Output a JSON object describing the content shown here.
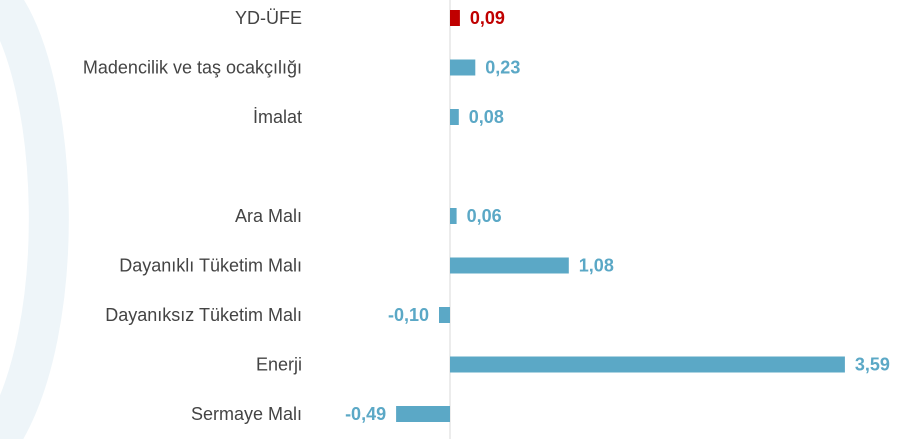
{
  "chart_data": {
    "type": "bar",
    "orientation": "horizontal",
    "categories": [
      "YD-ÜFE",
      "Madencilik ve taş ocakçılığı",
      "İmalat",
      null,
      "Ara Malı",
      "Dayanıklı Tüketim Malı",
      "Dayanıksız Tüketim Malı",
      "Enerji",
      "Sermaye Malı"
    ],
    "values": [
      0.09,
      0.23,
      0.08,
      null,
      0.06,
      1.08,
      -0.1,
      3.59,
      -0.49
    ],
    "value_labels": [
      "0,09",
      "0,23",
      "0,08",
      null,
      "0,06",
      "1,08",
      "-0,10",
      "3,59",
      "-0,49"
    ],
    "colors": [
      "#c00000",
      "#5ba8c6",
      "#5ba8c6",
      null,
      "#5ba8c6",
      "#5ba8c6",
      "#5ba8c6",
      "#5ba8c6",
      "#5ba8c6"
    ]
  }
}
